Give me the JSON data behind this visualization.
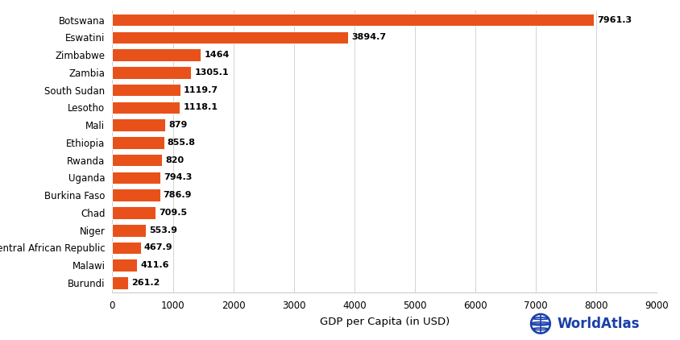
{
  "countries": [
    "Botswana",
    "Eswatini",
    "Zimbabwe",
    "Zambia",
    "South Sudan",
    "Lesotho",
    "Mali",
    "Ethiopia",
    "Rwanda",
    "Uganda",
    "Burkina Faso",
    "Chad",
    "Niger",
    "Central African Republic",
    "Malawi",
    "Burundi"
  ],
  "values": [
    7961.3,
    3894.7,
    1464.0,
    1305.1,
    1119.7,
    1118.1,
    879,
    855.8,
    820,
    794.3,
    786.9,
    709.5,
    553.9,
    467.9,
    411.6,
    261.2
  ],
  "bar_color": "#e8521a",
  "bar_edgecolor": "#ffffff",
  "xlabel": "GDP per Capita (in USD)",
  "xlim": [
    0,
    9000
  ],
  "xticks": [
    0,
    1000,
    2000,
    3000,
    4000,
    5000,
    6000,
    7000,
    8000,
    9000
  ],
  "background_color": "#ffffff",
  "label_fontsize": 8.5,
  "xlabel_fontsize": 9.5,
  "value_label_fontsize": 8,
  "tick_fontsize": 8.5,
  "watermark_text": "WorldAtlas",
  "watermark_color": "#1a3faa",
  "watermark_fontsize": 12,
  "grid_color": "#cccccc",
  "bar_height": 0.72
}
